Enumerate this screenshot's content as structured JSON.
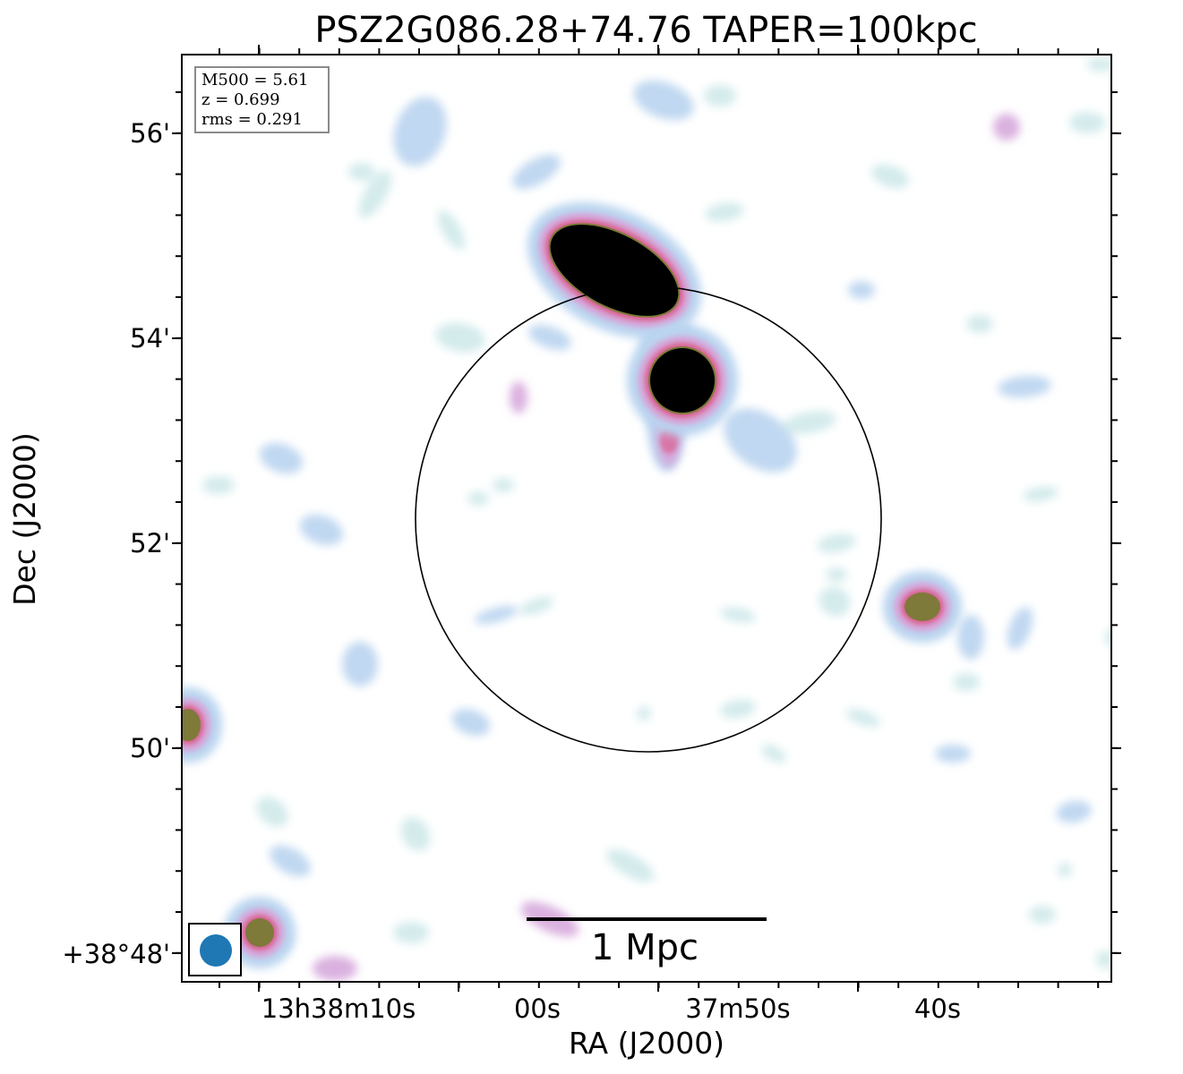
{
  "title": "PSZ2G086.28+74.76 TAPER=100kpc",
  "axes": {
    "xlabel": "RA (J2000)",
    "ylabel": "Dec (J2000)",
    "x_ticks": [
      "13h38m10s",
      "00s",
      "37m50s",
      "40s"
    ],
    "y_ticks": [
      "56'",
      "54'",
      "52'",
      "50'",
      "+38°48'"
    ]
  },
  "info": {
    "m500": "M500 = 5.61",
    "z": "z = 0.699",
    "rms": "rms = 0.291"
  },
  "scalebar": {
    "label": "1 Mpc"
  },
  "colors": {
    "faint": "#cfe9ea",
    "low": "#b9d4ef",
    "mid": "#d6a8db",
    "high": "#d8608e",
    "peak": "#7e7a3a",
    "core": "#000000",
    "beam": "#1f77b4"
  },
  "icons": {
    "beam": "filled-circle-beam"
  }
}
